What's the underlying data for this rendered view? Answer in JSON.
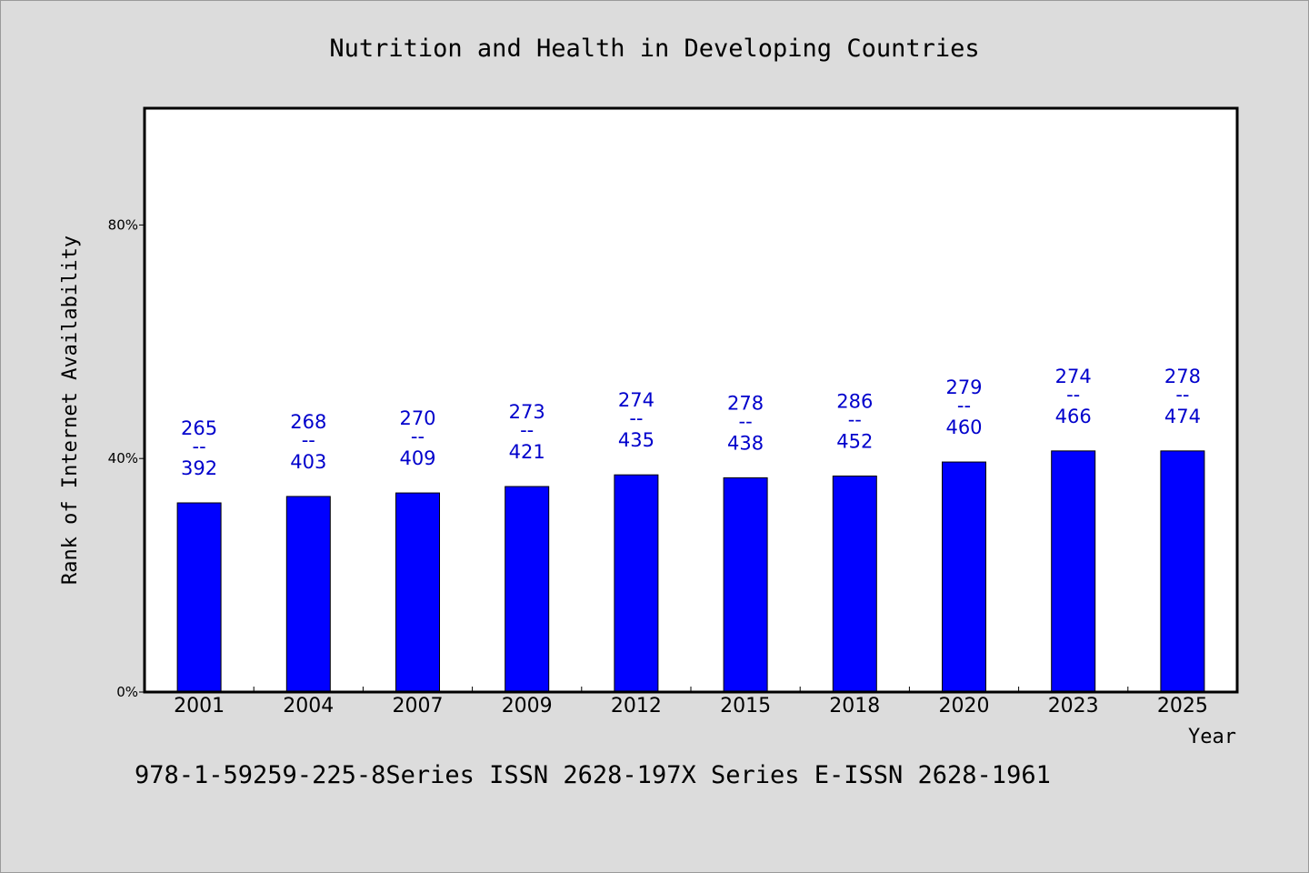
{
  "chart_data": {
    "type": "bar",
    "title": "Nutrition and Health in Developing Countries",
    "xlabel": "Year",
    "ylabel": "Rank of Internet Availability",
    "categories": [
      "2001",
      "2004",
      "2007",
      "2009",
      "2012",
      "2015",
      "2018",
      "2020",
      "2023",
      "2025"
    ],
    "values": [
      32.4,
      33.5,
      34.1,
      35.2,
      37.2,
      36.7,
      37.0,
      39.4,
      41.3,
      41.3
    ],
    "value_labels": [
      {
        "top": "265",
        "sep": "--",
        "bottom": "392"
      },
      {
        "top": "268",
        "sep": "--",
        "bottom": "403"
      },
      {
        "top": "270",
        "sep": "--",
        "bottom": "409"
      },
      {
        "top": "273",
        "sep": "--",
        "bottom": "421"
      },
      {
        "top": "274",
        "sep": "--",
        "bottom": "435"
      },
      {
        "top": "278",
        "sep": "--",
        "bottom": "438"
      },
      {
        "top": "286",
        "sep": "--",
        "bottom": "452"
      },
      {
        "top": "279",
        "sep": "--",
        "bottom": "460"
      },
      {
        "top": "274",
        "sep": "--",
        "bottom": "466"
      },
      {
        "top": "278",
        "sep": "--",
        "bottom": "474"
      }
    ],
    "yticks": [
      0,
      40,
      80
    ],
    "ytick_labels": [
      "0%",
      "40%",
      "80%"
    ],
    "ylim": [
      0,
      100
    ],
    "grid": false,
    "bar_color": "#0000ff",
    "label_color": "#0000cc",
    "background": "#dcdcdc",
    "plot_background": "#ffffff"
  },
  "footer": {
    "text": "978-1-59259-225-8Series ISSN 2628-197X Series E-ISSN 2628-1961"
  }
}
